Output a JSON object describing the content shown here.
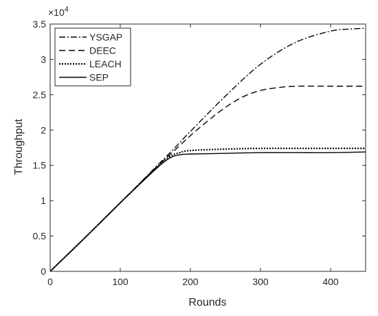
{
  "chart_data": {
    "type": "line",
    "title": "",
    "xlabel": "Rounds",
    "ylabel": "Throughput",
    "xlim": [
      0,
      450
    ],
    "ylim": [
      0,
      35000
    ],
    "x_ticks": [
      0,
      100,
      200,
      300,
      400
    ],
    "y_ticks": [
      0,
      5000,
      10000,
      15000,
      20000,
      25000,
      30000,
      35000
    ],
    "x_tick_labels": [
      "0",
      "100",
      "200",
      "300",
      "400"
    ],
    "y_tick_labels": [
      "0",
      "0.5",
      "1",
      "1.5",
      "2",
      "2.5",
      "3",
      "3.5"
    ],
    "y_exponent_base": "×10",
    "y_exponent_power": "4",
    "grid": false,
    "legend_position": "top-left",
    "series": [
      {
        "name": "YSGAP",
        "line_style": "dashdot",
        "color": "#000000",
        "x": [
          0,
          50,
          100,
          150,
          175,
          200,
          250,
          300,
          350,
          400,
          430,
          450
        ],
        "y": [
          0,
          4800,
          9700,
          14700,
          17200,
          19800,
          24800,
          29300,
          32400,
          34000,
          34300,
          34400
        ]
      },
      {
        "name": "DEEC",
        "line_style": "dashed",
        "color": "#000000",
        "x": [
          0,
          50,
          100,
          150,
          175,
          200,
          225,
          250,
          275,
          300,
          325,
          350,
          400,
          450
        ],
        "y": [
          0,
          4800,
          9700,
          14600,
          16900,
          19200,
          21300,
          23200,
          24700,
          25600,
          26000,
          26200,
          26200,
          26200
        ]
      },
      {
        "name": "LEACH",
        "line_style": "dotted",
        "color": "#000000",
        "x": [
          0,
          50,
          100,
          150,
          170,
          185,
          200,
          250,
          300,
          350,
          400,
          450
        ],
        "y": [
          0,
          4800,
          9700,
          14500,
          16200,
          16800,
          17100,
          17300,
          17400,
          17400,
          17400,
          17400
        ]
      },
      {
        "name": "SEP",
        "line_style": "solid",
        "color": "#000000",
        "x": [
          0,
          50,
          100,
          150,
          170,
          185,
          200,
          250,
          300,
          350,
          400,
          450
        ],
        "y": [
          0,
          4800,
          9700,
          14400,
          16000,
          16500,
          16600,
          16700,
          16800,
          16800,
          16800,
          16900
        ]
      }
    ]
  }
}
